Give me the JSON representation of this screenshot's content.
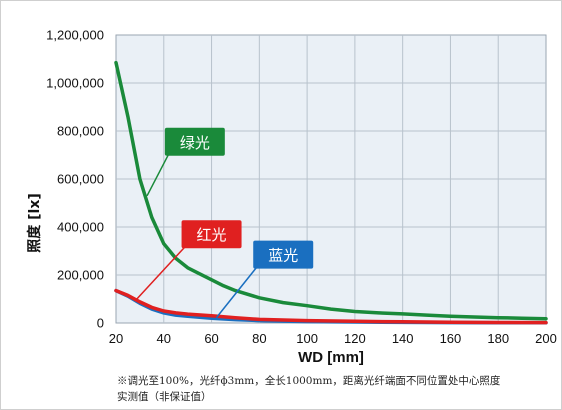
{
  "chart_data": {
    "type": "line",
    "xlabel": "WD [mm]",
    "ylabel": "照度 [lx]",
    "xlim": [
      20,
      200
    ],
    "ylim": [
      0,
      1200000
    ],
    "x_ticks": [
      "20",
      "40",
      "60",
      "80",
      "100",
      "120",
      "140",
      "160",
      "180",
      "200"
    ],
    "y_ticks": [
      "0",
      "200,000",
      "400,000",
      "600,000",
      "800,000",
      "1,000,000",
      "1,200,000"
    ],
    "grid": true,
    "series": [
      {
        "name": "绿光",
        "color": "#1a8a3a",
        "x": [
          20,
          25,
          30,
          35,
          40,
          45,
          50,
          55,
          60,
          65,
          70,
          80,
          90,
          100,
          110,
          120,
          130,
          140,
          150,
          160,
          170,
          180,
          190,
          200
        ],
        "y": [
          1085000,
          860000,
          600000,
          440000,
          330000,
          270000,
          230000,
          205000,
          180000,
          155000,
          135000,
          105000,
          85000,
          72000,
          58000,
          48000,
          42000,
          38000,
          33000,
          28000,
          25000,
          22000,
          20000,
          18000
        ]
      },
      {
        "name": "红光",
        "color": "#e02020",
        "x": [
          20,
          25,
          30,
          35,
          40,
          45,
          50,
          60,
          70,
          80,
          100,
          120,
          140,
          160,
          180,
          200
        ],
        "y": [
          135000,
          115000,
          88000,
          65000,
          50000,
          42000,
          37000,
          30000,
          22000,
          15000,
          10000,
          7000,
          5000,
          3000,
          2000,
          1500
        ]
      },
      {
        "name": "蓝光",
        "color": "#1a6fc0",
        "x": [
          20,
          25,
          30,
          35,
          40,
          45,
          50,
          60,
          70,
          80,
          100,
          120,
          140,
          160,
          180,
          200
        ],
        "y": [
          135000,
          112000,
          82000,
          58000,
          42000,
          33000,
          28000,
          20000,
          14000,
          10000,
          6000,
          4000,
          2500,
          1500,
          1000,
          800
        ]
      }
    ],
    "annotations": [
      {
        "text": "绿光",
        "color": "#1a8a3a",
        "box_x": 53,
        "box_y": 755000,
        "target_x": 33,
        "target_y": 530000
      },
      {
        "text": "红光",
        "color": "#e02020",
        "box_x": 60,
        "box_y": 370000,
        "target_x": 28,
        "target_y": 92000
      },
      {
        "text": "蓝光",
        "color": "#1a6fc0",
        "box_x": 90,
        "box_y": 285000,
        "target_x": 62,
        "target_y": 22000
      }
    ]
  },
  "footnote": {
    "line1": "※调光至100%，光纤ϕ3mm，全长1000mm，距离光纤端面不同位置处中心照度",
    "line2": "实测值（非保证值）"
  }
}
